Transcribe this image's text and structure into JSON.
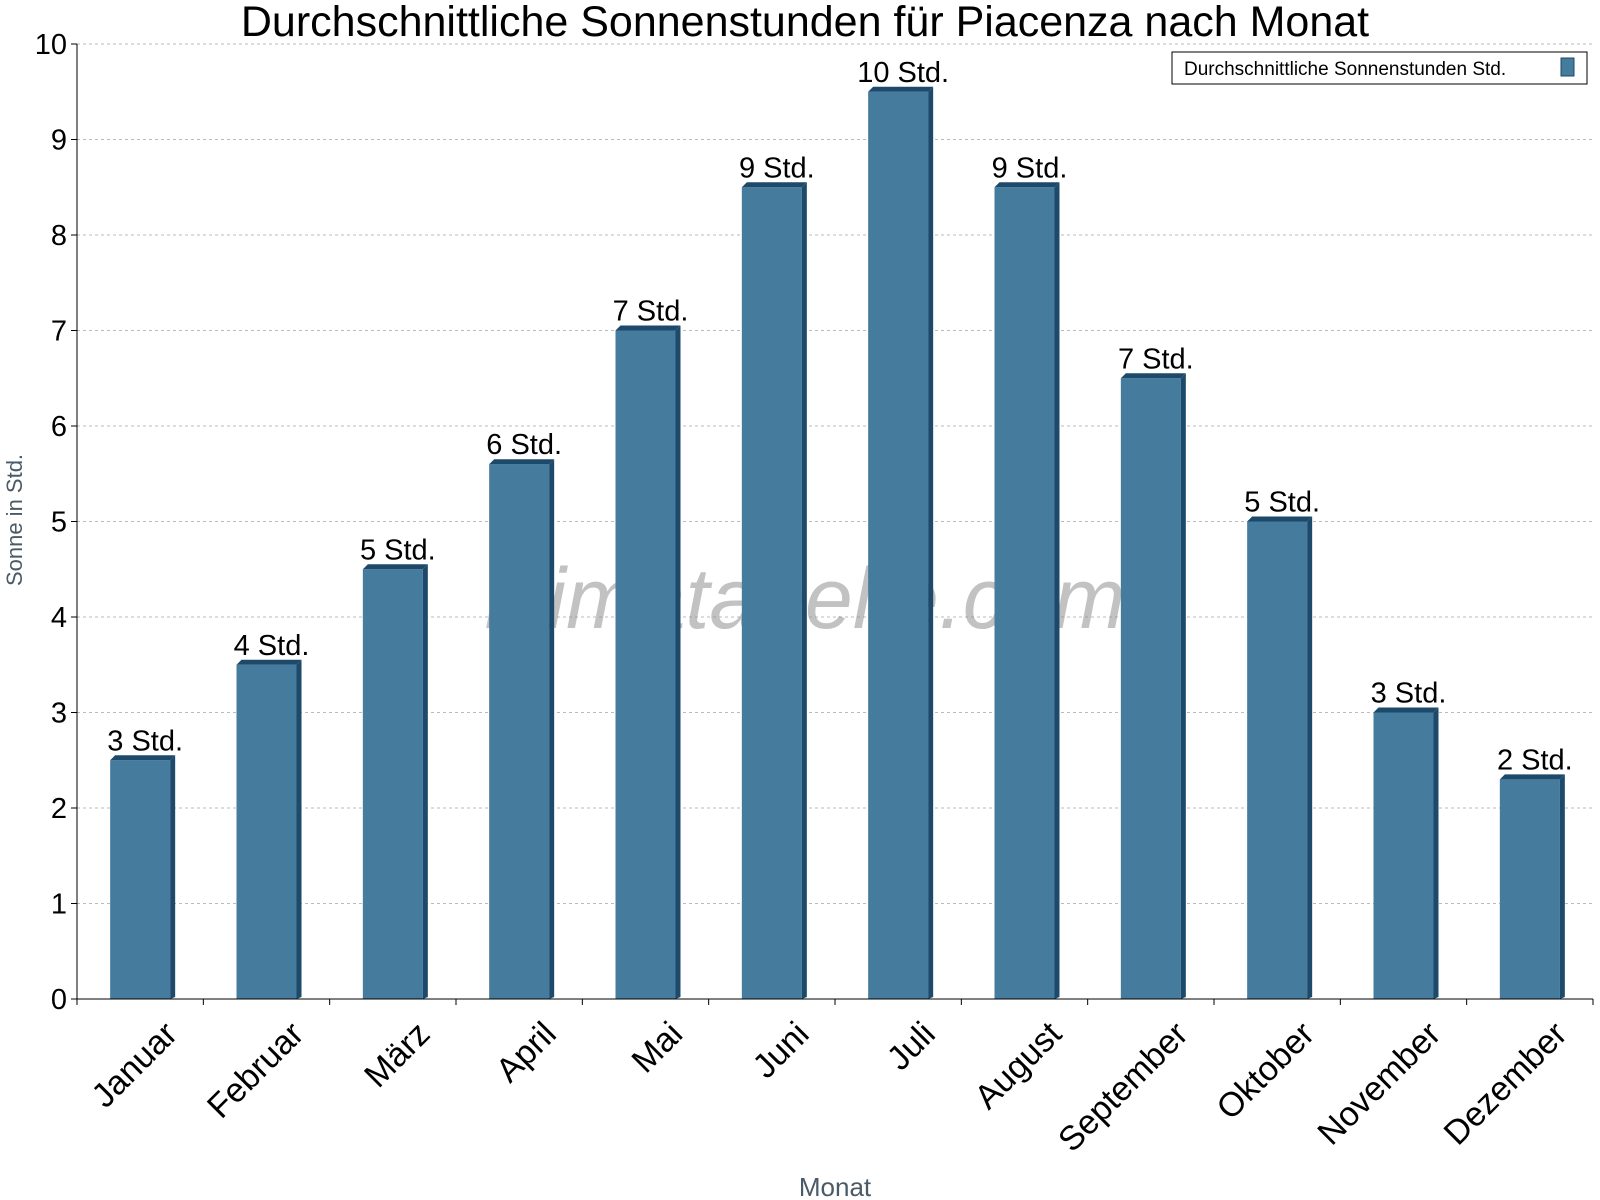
{
  "chart_data": {
    "type": "bar",
    "title": "Durchschnittliche Sonnenstunden für Piacenza nach Monat",
    "xlabel": "Monat",
    "ylabel": "Sonne in Std.",
    "ylim": [
      0,
      10
    ],
    "yticks": [
      "0",
      "1",
      "2",
      "3",
      "4",
      "5",
      "6",
      "7",
      "8",
      "9",
      "10"
    ],
    "grid": true,
    "legend_position": "top-right",
    "categories": [
      "Januar",
      "Februar",
      "März",
      "April",
      "Mai",
      "Juni",
      "Juli",
      "August",
      "September",
      "Oktober",
      "November",
      "Dezember"
    ],
    "series": [
      {
        "name": "Durchschnittliche Sonnenstunden Std.",
        "values": [
          2.5,
          3.5,
          4.5,
          5.6,
          7.0,
          8.5,
          9.5,
          8.5,
          6.5,
          5.0,
          3.0,
          2.3
        ],
        "labels": [
          "3 Std.",
          "4 Std.",
          "5 Std.",
          "6 Std.",
          "7 Std.",
          "9 Std.",
          "10 Std.",
          "9 Std.",
          "7 Std.",
          "5 Std.",
          "3 Std.",
          "2 Std."
        ]
      }
    ],
    "colors": {
      "bar": "#457b9d",
      "bar_side": "#1d4a6b",
      "axis_title": "#4a5a66",
      "grid": "#bbbbbb"
    }
  },
  "watermark": "klimatabelle.com"
}
